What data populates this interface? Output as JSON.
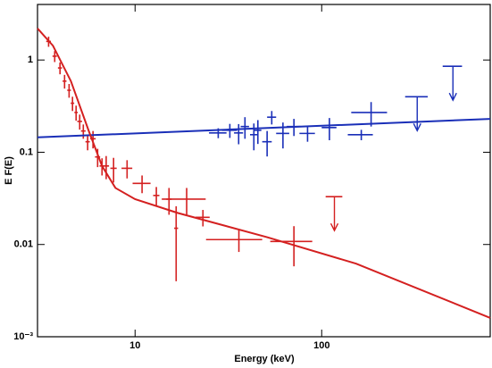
{
  "chart_data": {
    "type": "errorbar",
    "xlabel": "Energy (keV)",
    "ylabel": "E F(E)",
    "xscale": "log",
    "yscale": "log",
    "xlim": [
      3,
      800
    ],
    "ylim": [
      0.001,
      4
    ],
    "xticks": [
      10,
      100
    ],
    "yticks": [
      {
        "value": 0.001,
        "label": "10⁻³"
      },
      0.01,
      0.1,
      1
    ],
    "series": [
      {
        "type": "errorbar",
        "color": "#d42020",
        "x": [
          3.44,
          3.71,
          3.96,
          4.19,
          4.43,
          4.62,
          4.83,
          5.05,
          5.28,
          5.57,
          5.95,
          6.3,
          6.65,
          7.0,
          7.67,
          9.06,
          10.9,
          13.0,
          15.2,
          16.6,
          18.9,
          23.1,
          36,
          71
        ],
        "xerr": [
          0.1,
          0.1,
          0.1,
          0.1,
          0.1,
          0.1,
          0.1,
          0.15,
          0.15,
          0.15,
          0.2,
          0.2,
          0.2,
          0.25,
          0.3,
          0.6,
          1.2,
          0.5,
          0.5,
          0.4,
          5,
          2,
          12,
          18
        ],
        "values": [
          1.59,
          1.1,
          0.82,
          0.59,
          0.47,
          0.34,
          0.27,
          0.216,
          0.17,
          0.13,
          0.14,
          0.089,
          0.071,
          0.071,
          0.067,
          0.067,
          0.046,
          0.034,
          0.031,
          0.015,
          0.031,
          0.0197,
          0.0113,
          0.0108
        ],
        "yerr": [
          0.2,
          0.15,
          0.12,
          0.1,
          0.08,
          0.06,
          0.05,
          0.04,
          0.03,
          0.025,
          0.03,
          0.02,
          0.015,
          0.02,
          0.02,
          0.015,
          0.01,
          0.008,
          0.01,
          0.011,
          0.01,
          0.004,
          0.003,
          0.005
        ]
      },
      {
        "type": "errorbar",
        "color": "#1a2fb8",
        "x": [
          27.9,
          32.2,
          35.9,
          38.8,
          43.3,
          45.5,
          51,
          54,
          62,
          71,
          84,
          110,
          163,
          184
        ],
        "xerr": [
          3,
          3,
          2,
          2,
          2,
          2,
          3,
          3,
          5,
          6,
          8,
          10,
          25,
          40
        ],
        "values": [
          0.162,
          0.173,
          0.162,
          0.19,
          0.155,
          0.173,
          0.13,
          0.24,
          0.16,
          0.19,
          0.16,
          0.185,
          0.155,
          0.27
        ],
        "yerr": [
          0.02,
          0.03,
          0.04,
          0.05,
          0.05,
          0.05,
          0.04,
          0.04,
          0.05,
          0.04,
          0.03,
          0.05,
          0.02,
          0.08
        ]
      },
      {
        "type": "upper_limit",
        "color": "#d42020",
        "x": [
          117
        ],
        "xerr": [
          12
        ],
        "values": [
          0.033
        ]
      },
      {
        "type": "upper_limit",
        "color": "#1a2fb8",
        "x": [
          325,
          505
        ],
        "xerr": [
          45,
          60
        ],
        "values": [
          0.4,
          0.855
        ]
      },
      {
        "type": "line",
        "color": "#1a2fb8",
        "x": [
          3,
          800
        ],
        "values": [
          0.145,
          0.23
        ]
      },
      {
        "type": "line",
        "color": "#d42020",
        "x": [
          3,
          3.63,
          4.53,
          5.63,
          6.65,
          7.85,
          10,
          16.9,
          51,
          153,
          800
        ],
        "values": [
          2.2,
          1.43,
          0.59,
          0.173,
          0.071,
          0.041,
          0.031,
          0.022,
          0.012,
          0.0062,
          0.0016
        ]
      }
    ]
  }
}
